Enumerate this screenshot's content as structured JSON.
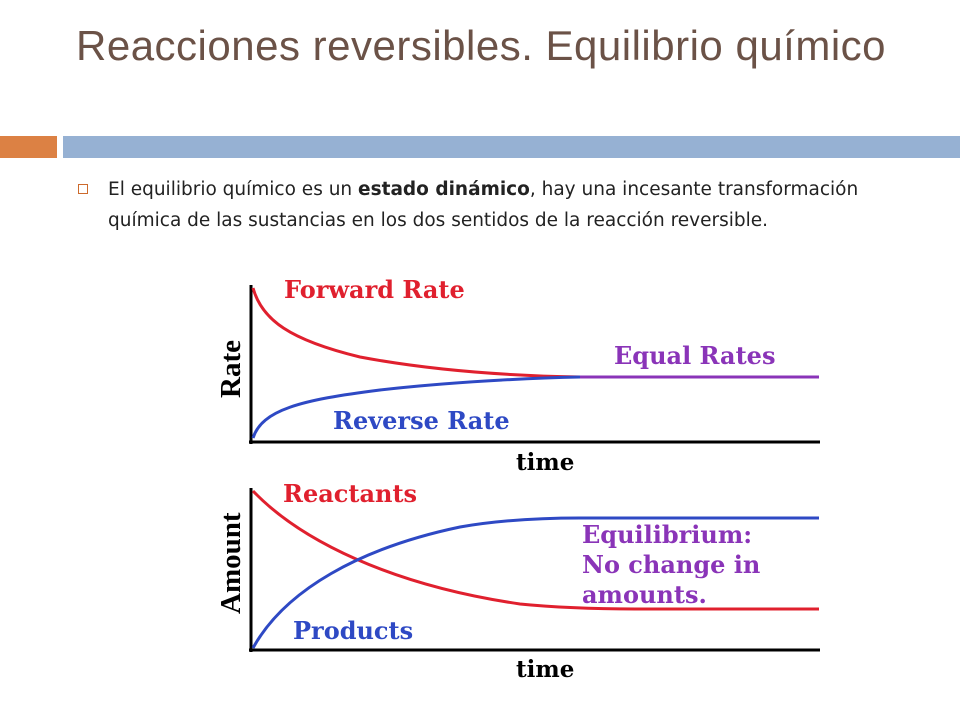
{
  "slide": {
    "title": "Reacciones reversibles. Equilibrio químico",
    "bullet": {
      "text_before": "El equilibrio químico es un ",
      "bold_text": "estado dinámico",
      "text_after": ", hay una incesante transformación química de las sustancias en los dos sentidos de la reacción reversible."
    }
  },
  "colors": {
    "title": "#6b5247",
    "accent_bar": "#dc8144",
    "main_bar": "#96b1d3",
    "red_curve": "#e0202e",
    "blue_curve": "#2e49c4",
    "purple_curve": "#8a34b8"
  },
  "diagram": {
    "rate_chart": {
      "ylabel": "Rate",
      "xlabel": "time",
      "forward_label": "Forward Rate",
      "reverse_label": "Reverse Rate",
      "equal_label": "Equal Rates"
    },
    "amount_chart": {
      "ylabel": "Amount",
      "xlabel": "time",
      "reactants_label": "Reactants",
      "products_label": "Products",
      "equilibrium_line1": "Equilibrium:",
      "equilibrium_line2": "No change in",
      "equilibrium_line3": "amounts."
    }
  }
}
